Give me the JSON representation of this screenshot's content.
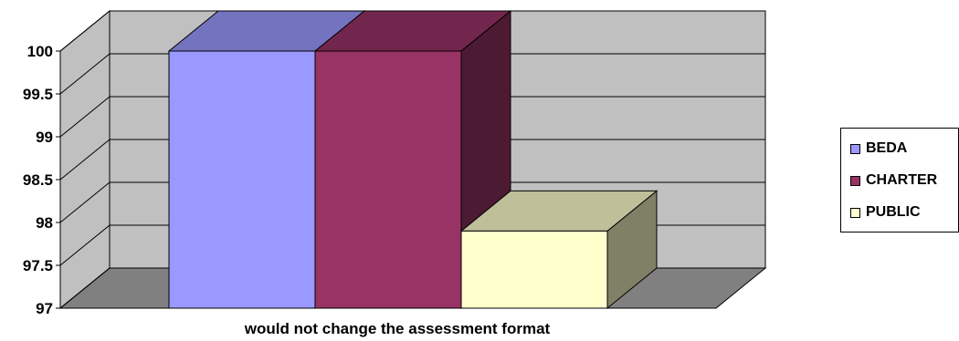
{
  "chart_data": {
    "type": "bar",
    "categories": [
      "would not change the assessment format"
    ],
    "series": [
      {
        "name": "BEDA",
        "values": [
          100
        ],
        "color": "#9999FF"
      },
      {
        "name": "CHARTER",
        "values": [
          100
        ],
        "color": "#993366"
      },
      {
        "name": "PUBLIC",
        "values": [
          97.9
        ],
        "color": "#FFFFCC"
      }
    ],
    "ylim": [
      97,
      100
    ],
    "yticks": [
      "97",
      "97.5",
      "98",
      "98.5",
      "99",
      "99.5",
      "100"
    ],
    "grid": true,
    "legend": "right",
    "wall_color": "#C0C0C0",
    "floor_color": "#808080"
  }
}
